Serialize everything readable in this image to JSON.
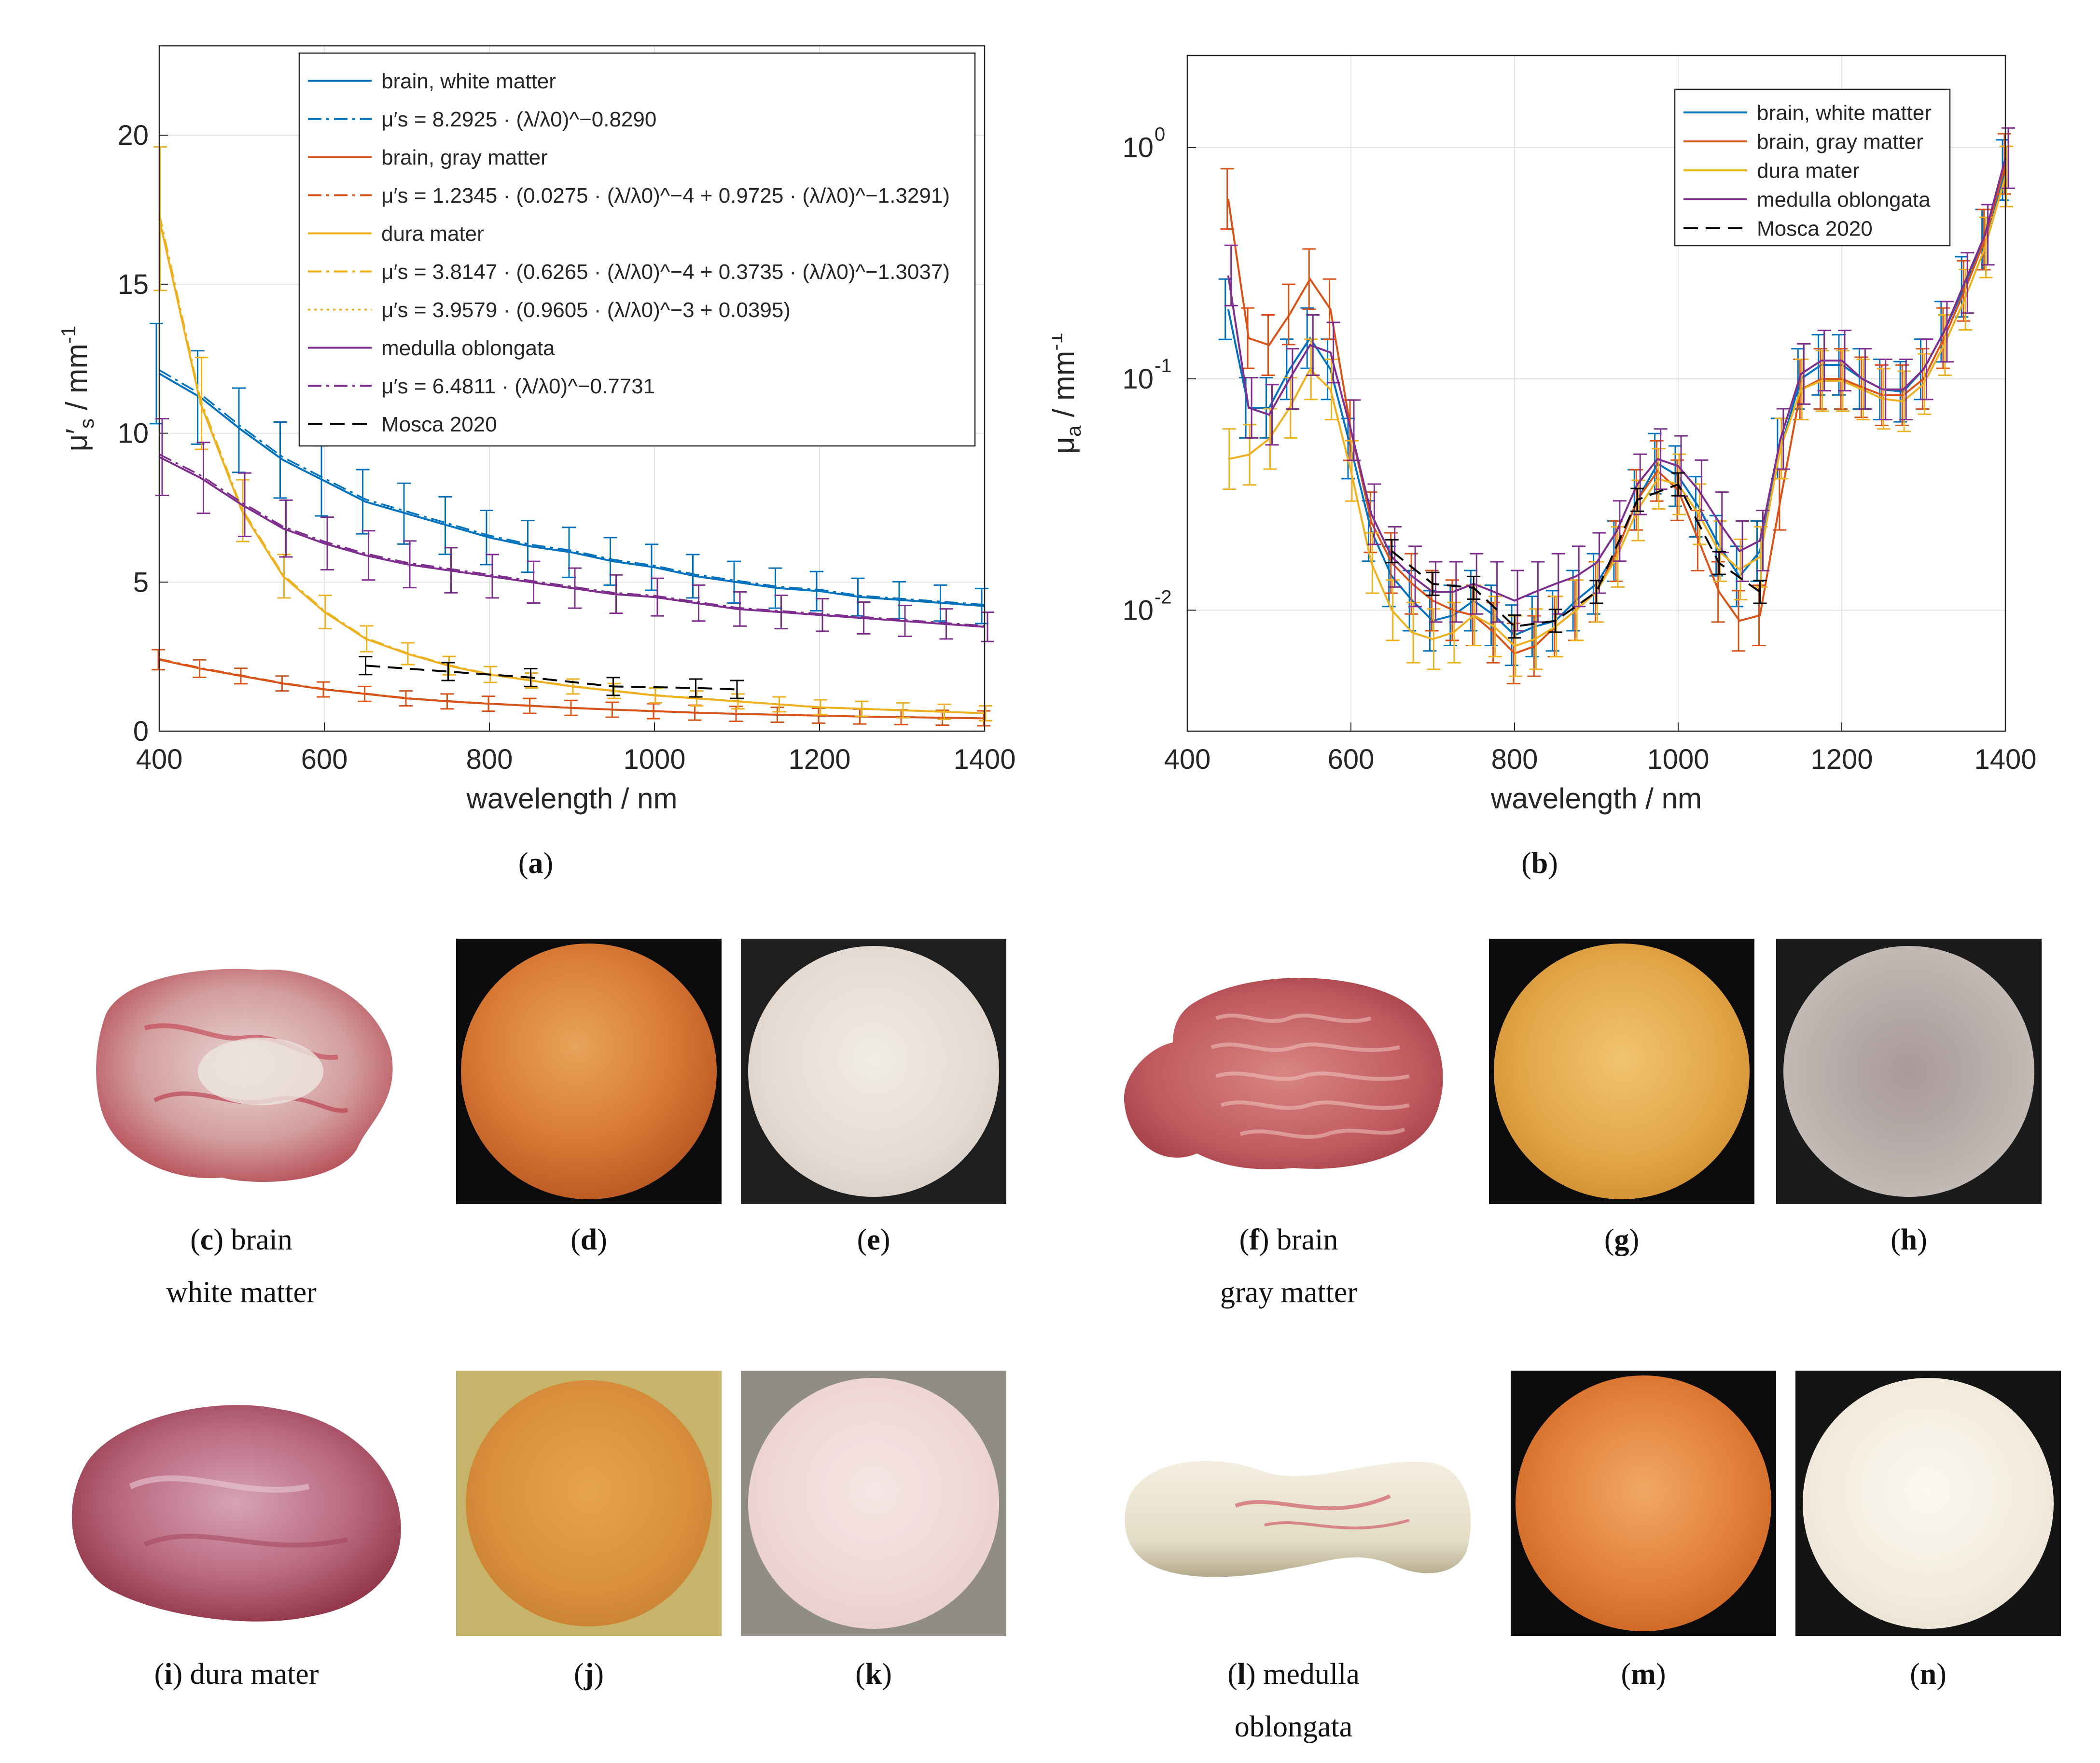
{
  "panel_a": {
    "label": "a",
    "ylabel_main": "μ′",
    "ylabel_sub": "s",
    "ylabel_unit": " / mm",
    "ylabel_exp": "-1",
    "xlabel": "wavelength / nm",
    "xticks": [
      "400",
      "600",
      "800",
      "1000",
      "1200",
      "1400"
    ],
    "yticks": [
      "0",
      "5",
      "10",
      "15",
      "20"
    ],
    "legend": [
      {
        "text": "brain, white matter",
        "style": "solid",
        "color": "#0072BD"
      },
      {
        "text": "μ′s = 8.2925 · (λ/λ0)^−0.8290",
        "style": "dashdot",
        "color": "#0072BD"
      },
      {
        "text": "brain, gray matter",
        "style": "solid",
        "color": "#D95319"
      },
      {
        "text": "μ′s = 1.2345 · (0.0275 · (λ/λ0)^−4 + 0.9725 · (λ/λ0)^−1.3291)",
        "style": "dashdot",
        "color": "#D95319"
      },
      {
        "text": "dura mater",
        "style": "solid",
        "color": "#EDB120"
      },
      {
        "text": "μ′s = 3.8147 · (0.6265 · (λ/λ0)^−4 + 0.3735 · (λ/λ0)^−1.3037)",
        "style": "dashdot",
        "color": "#EDB120"
      },
      {
        "text": "μ′s = 3.9579 · (0.9605 · (λ/λ0)^−3 + 0.0395)",
        "style": "dotted",
        "color": "#EDB120"
      },
      {
        "text": "medulla oblongata",
        "style": "solid",
        "color": "#7E2F8E"
      },
      {
        "text": "μ′s = 6.4811 · (λ/λ0)^−0.7731",
        "style": "dashdot",
        "color": "#7E2F8E"
      },
      {
        "text": "Mosca 2020",
        "style": "dashed",
        "color": "#000000"
      }
    ]
  },
  "panel_b": {
    "label": "b",
    "ylabel_main": "μ",
    "ylabel_sub": "a",
    "ylabel_unit": " / mm",
    "ylabel_exp": "-1",
    "xlabel": "wavelength / nm",
    "xticks": [
      "400",
      "600",
      "800",
      "1000",
      "1200",
      "1400"
    ],
    "yticks": [
      {
        "base": "10",
        "exp": "0"
      },
      {
        "base": "10",
        "exp": "-1"
      },
      {
        "base": "10",
        "exp": "-2"
      }
    ],
    "legend": [
      {
        "text": "brain, white matter",
        "style": "solid",
        "color": "#0072BD"
      },
      {
        "text": "brain, gray matter",
        "style": "solid",
        "color": "#D95319"
      },
      {
        "text": "dura mater",
        "style": "solid",
        "color": "#EDB120"
      },
      {
        "text": "medulla oblongata",
        "style": "solid",
        "color": "#7E2F8E"
      },
      {
        "text": "Mosca 2020",
        "style": "dashed",
        "color": "#000000"
      }
    ]
  },
  "chart_data": [
    {
      "type": "line",
      "title": "",
      "xlabel": "wavelength / nm",
      "ylabel": "μ′s / mm-1",
      "xlim": [
        400,
        1400
      ],
      "ylim": [
        0,
        23
      ],
      "x": [
        400,
        450,
        500,
        550,
        600,
        650,
        700,
        750,
        800,
        850,
        900,
        950,
        1000,
        1050,
        1100,
        1150,
        1200,
        1250,
        1300,
        1350,
        1400
      ],
      "series": [
        {
          "name": "brain, white matter",
          "color": "#0072BD",
          "values": [
            12.0,
            11.2,
            10.1,
            9.1,
            8.4,
            7.7,
            7.3,
            6.9,
            6.5,
            6.2,
            6.0,
            5.7,
            5.5,
            5.2,
            5.0,
            4.8,
            4.7,
            4.5,
            4.4,
            4.3,
            4.2
          ]
        },
        {
          "name": "brain, gray matter",
          "color": "#D95319",
          "values": [
            2.4,
            2.1,
            1.85,
            1.6,
            1.4,
            1.25,
            1.1,
            1.0,
            0.92,
            0.85,
            0.78,
            0.72,
            0.67,
            0.62,
            0.58,
            0.55,
            0.52,
            0.49,
            0.47,
            0.45,
            0.43
          ]
        },
        {
          "name": "dura mater",
          "color": "#EDB120",
          "values": [
            17.2,
            11.0,
            7.4,
            5.2,
            4.0,
            3.1,
            2.6,
            2.2,
            1.9,
            1.7,
            1.5,
            1.35,
            1.2,
            1.1,
            1.0,
            0.9,
            0.8,
            0.75,
            0.7,
            0.65,
            0.6
          ]
        },
        {
          "name": "medulla oblongata",
          "color": "#7E2F8E",
          "values": [
            9.2,
            8.5,
            7.6,
            6.8,
            6.3,
            5.9,
            5.6,
            5.4,
            5.2,
            5.0,
            4.8,
            4.6,
            4.5,
            4.3,
            4.1,
            4.0,
            3.9,
            3.8,
            3.7,
            3.6,
            3.5
          ]
        }
      ],
      "reference": {
        "name": "Mosca 2020",
        "color": "#000000",
        "x": [
          650,
          750,
          850,
          950,
          1050,
          1100
        ],
        "values": [
          2.2,
          2.0,
          1.8,
          1.5,
          1.45,
          1.4
        ]
      }
    },
    {
      "type": "line",
      "title": "",
      "xlabel": "wavelength / nm",
      "ylabel": "μa / mm-1",
      "xlim": [
        400,
        1400
      ],
      "ylim": [
        0.003,
        2.5
      ],
      "yscale": "log",
      "x": [
        450,
        475,
        500,
        525,
        550,
        575,
        600,
        625,
        650,
        675,
        700,
        725,
        750,
        775,
        800,
        825,
        850,
        875,
        900,
        925,
        950,
        975,
        1000,
        1025,
        1050,
        1075,
        1100,
        1125,
        1150,
        1175,
        1200,
        1225,
        1250,
        1275,
        1300,
        1325,
        1350,
        1375,
        1400
      ],
      "series": [
        {
          "name": "brain, white matter",
          "color": "#0072BD",
          "values": [
            0.2,
            0.075,
            0.075,
            0.11,
            0.15,
            0.11,
            0.05,
            0.022,
            0.014,
            0.011,
            0.009,
            0.0095,
            0.011,
            0.0095,
            0.0078,
            0.0085,
            0.009,
            0.011,
            0.013,
            0.018,
            0.03,
            0.043,
            0.038,
            0.028,
            0.019,
            0.014,
            0.018,
            0.05,
            0.1,
            0.115,
            0.115,
            0.1,
            0.09,
            0.088,
            0.11,
            0.16,
            0.25,
            0.4,
            0.8
          ]
        },
        {
          "name": "brain, gray matter",
          "color": "#D95319",
          "values": [
            0.6,
            0.15,
            0.14,
            0.19,
            0.27,
            0.2,
            0.06,
            0.024,
            0.016,
            0.013,
            0.011,
            0.01,
            0.0095,
            0.008,
            0.0065,
            0.007,
            0.0085,
            0.01,
            0.012,
            0.018,
            0.03,
            0.04,
            0.033,
            0.02,
            0.012,
            0.009,
            0.0095,
            0.03,
            0.09,
            0.1,
            0.1,
            0.092,
            0.085,
            0.085,
            0.1,
            0.15,
            0.24,
            0.4,
            0.85
          ]
        },
        {
          "name": "dura mater",
          "color": "#EDB120",
          "values": [
            0.045,
            0.047,
            0.055,
            0.075,
            0.11,
            0.09,
            0.04,
            0.016,
            0.01,
            0.008,
            0.0075,
            0.008,
            0.0095,
            0.0085,
            0.007,
            0.0075,
            0.0085,
            0.01,
            0.012,
            0.017,
            0.027,
            0.037,
            0.035,
            0.026,
            0.018,
            0.015,
            0.017,
            0.05,
            0.09,
            0.098,
            0.098,
            0.09,
            0.082,
            0.08,
            0.095,
            0.14,
            0.22,
            0.37,
            0.75
          ]
        },
        {
          "name": "medulla oblongata",
          "color": "#7E2F8E",
          "values": [
            0.28,
            0.075,
            0.07,
            0.1,
            0.14,
            0.13,
            0.06,
            0.026,
            0.017,
            0.014,
            0.012,
            0.012,
            0.013,
            0.012,
            0.011,
            0.012,
            0.013,
            0.014,
            0.016,
            0.022,
            0.035,
            0.045,
            0.042,
            0.033,
            0.024,
            0.018,
            0.02,
            0.055,
            0.105,
            0.12,
            0.12,
            0.1,
            0.09,
            0.09,
            0.11,
            0.16,
            0.26,
            0.42,
            0.9
          ]
        }
      ],
      "reference": {
        "name": "Mosca 2020",
        "color": "#000000",
        "x": [
          650,
          700,
          750,
          800,
          850,
          900,
          950,
          1000,
          1050,
          1100
        ],
        "values": [
          0.018,
          0.013,
          0.0125,
          0.0085,
          0.009,
          0.012,
          0.03,
          0.035,
          0.016,
          0.012
        ]
      }
    }
  ],
  "captions": {
    "c": {
      "label": "c",
      "line1": " brain",
      "line2": "white matter"
    },
    "d": {
      "label": "d"
    },
    "e": {
      "label": "e"
    },
    "f": {
      "label": "f",
      "line1": " brain",
      "line2": "gray matter"
    },
    "g": {
      "label": "g"
    },
    "h": {
      "label": "h"
    },
    "i": {
      "label": "i",
      "line1": " dura mater"
    },
    "j": {
      "label": "j"
    },
    "k": {
      "label": "k"
    },
    "l": {
      "label": "l",
      "line1": " medulla",
      "line2": "oblongata"
    },
    "m": {
      "label": "m"
    },
    "n": {
      "label": "n"
    }
  }
}
